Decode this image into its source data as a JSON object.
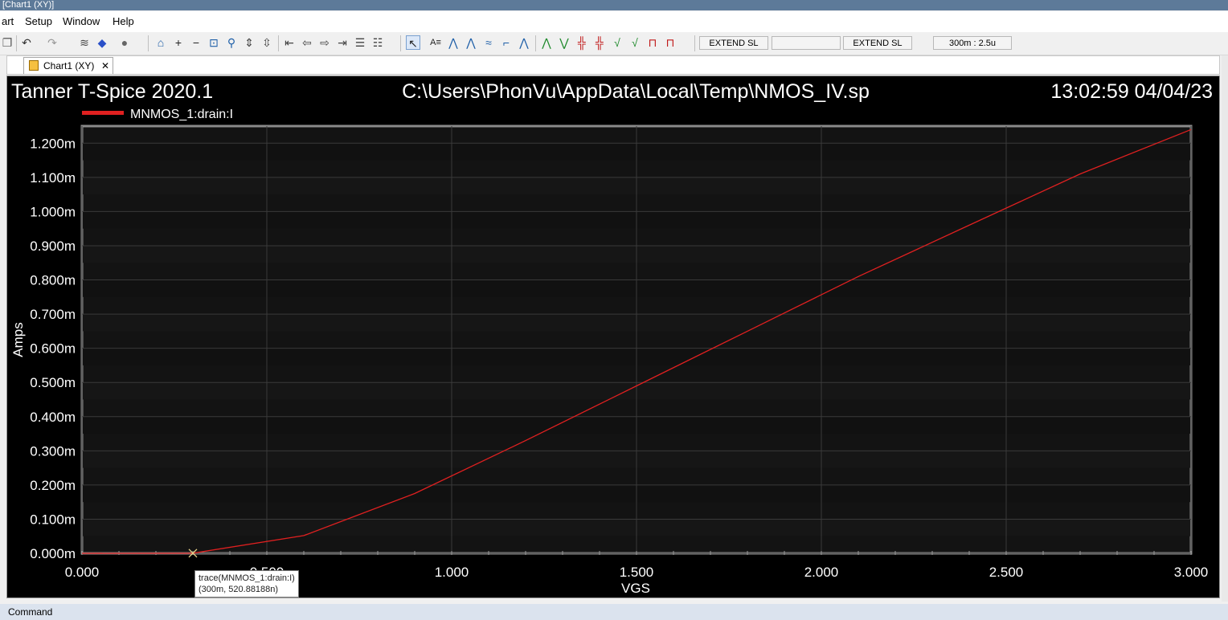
{
  "window": {
    "title": "[Chart1 (XY)]"
  },
  "menu": {
    "items": [
      "art",
      "Setup",
      "Window",
      "Help"
    ]
  },
  "toolbar": {
    "extend_sl_1": "EXTEND SL",
    "blank_field": "",
    "extend_sl_2": "EXTEND SL",
    "range": "300m : 2.5u"
  },
  "tabs": [
    {
      "label": "Chart1 (XY)",
      "close": "✕"
    }
  ],
  "chart_header": {
    "app": "Tanner T-Spice 2020.1",
    "file": "C:\\Users\\PhonVu\\AppData\\Local\\Temp\\NMOS_IV.sp",
    "timestamp": "13:02:59 04/04/23"
  },
  "chart_data": {
    "type": "line",
    "xlabel": "VGS",
    "ylabel": "Amps",
    "xlim": [
      0,
      3
    ],
    "ylim": [
      0,
      0.00125
    ],
    "x_ticks": [
      0,
      0.5,
      1,
      1.5,
      2,
      2.5,
      3
    ],
    "x_tick_labels": [
      "0.000",
      "0.500",
      "1.000",
      "1.500",
      "2.000",
      "2.500",
      "3.000"
    ],
    "y_ticks": [
      0,
      0.0001,
      0.0002,
      0.0003,
      0.0004,
      0.0005,
      0.0006,
      0.0007,
      0.0008,
      0.0009,
      0.001,
      0.0011,
      0.0012
    ],
    "y_tick_labels": [
      "0.000m",
      "0.100m",
      "0.200m",
      "0.300m",
      "0.400m",
      "0.500m",
      "0.600m",
      "0.700m",
      "0.800m",
      "0.900m",
      "1.000m",
      "1.100m",
      "1.200m"
    ],
    "grid": true,
    "legend_position": "top-left",
    "series": [
      {
        "name": "MNMOS_1:drain:I",
        "color": "#e02020",
        "x": [
          0,
          0.3,
          0.6,
          0.9,
          1.2,
          1.5,
          1.8,
          2.1,
          2.4,
          2.7,
          3.0
        ],
        "y": [
          0,
          5.2e-07,
          5.2e-05,
          0.000175,
          0.00033,
          0.00049,
          0.00065,
          0.00081,
          0.00096,
          0.00111,
          0.00124
        ]
      }
    ],
    "cursor": {
      "x": 0.3,
      "y": 5.2e-07,
      "label_line1": "trace(MNMOS_1:drain:I)",
      "label_line2": "(300m, 520.88188n)"
    }
  },
  "statusbar": {
    "text": "Command"
  }
}
